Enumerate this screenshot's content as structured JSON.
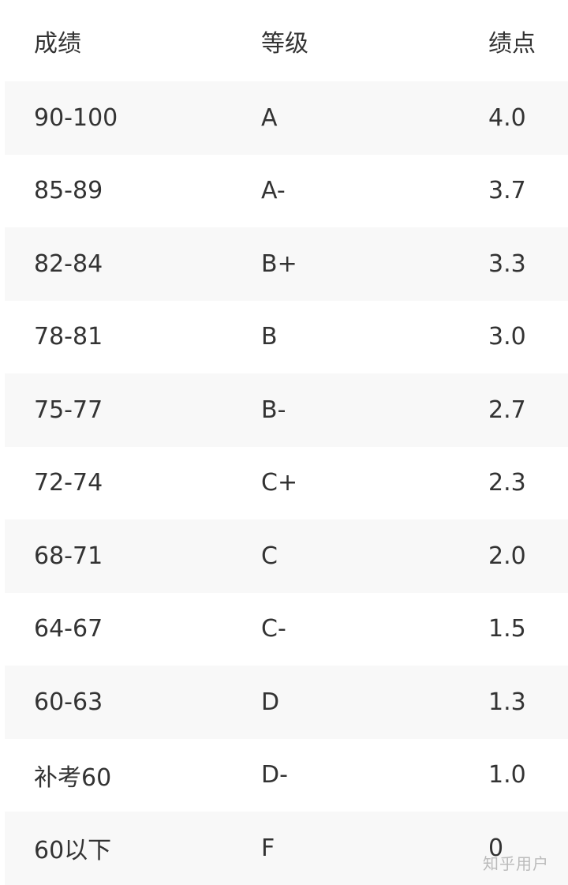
{
  "table": {
    "headers": [
      "成绩",
      "等级",
      "绩点"
    ],
    "rows": [
      [
        "90-100",
        "A",
        "4.0"
      ],
      [
        "85-89",
        "A-",
        "3.7"
      ],
      [
        "82-84",
        "B+",
        "3.3"
      ],
      [
        "78-81",
        "B",
        "3.0"
      ],
      [
        "75-77",
        "B-",
        "2.7"
      ],
      [
        "72-74",
        "C+",
        "2.3"
      ],
      [
        "68-71",
        "C",
        "2.0"
      ],
      [
        "64-67",
        "C-",
        "1.5"
      ],
      [
        "60-63",
        "D",
        "1.3"
      ],
      [
        "补考60",
        "D-",
        "1.0"
      ],
      [
        "60以下",
        "F",
        "0"
      ]
    ]
  },
  "watermark": "知乎用户"
}
